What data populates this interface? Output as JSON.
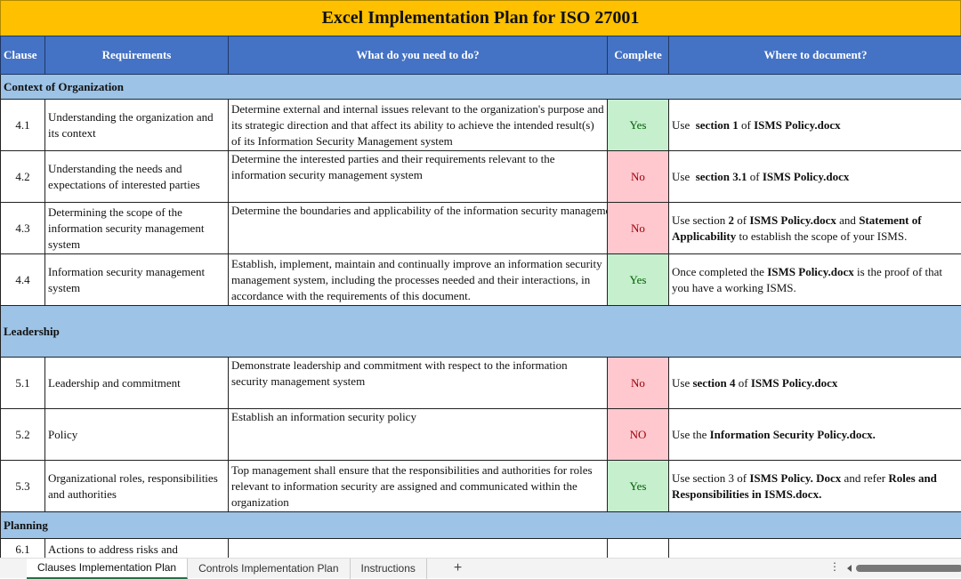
{
  "title": "Excel Implementation Plan for ISO 27001",
  "headers": [
    "Clause",
    "Requirements",
    "What do you need to do?",
    "Complete",
    "Where to document?"
  ],
  "sections": [
    {
      "name": "Context of Organization",
      "rows": [
        {
          "clause": "4.1",
          "req": "Understanding the organization and its context",
          "todo": "Determine external and internal issues relevant to the organization's purpose and its strategic direction and that affect its ability to achieve the intended result(s) of its Information Security Management system",
          "complete": "Yes",
          "doc": [
            {
              "t": "Use  "
            },
            {
              "t": "section 1",
              "b": true
            },
            {
              "t": " of "
            },
            {
              "t": "ISMS Policy.docx",
              "b": true
            }
          ]
        },
        {
          "clause": "4.2",
          "req": "Understanding the needs and expectations of interested parties",
          "todo": "Determine the interested parties and their requirements relevant to the information security management system",
          "complete": "No",
          "doc": [
            {
              "t": "Use  "
            },
            {
              "t": "section 3.1",
              "b": true
            },
            {
              "t": " of "
            },
            {
              "t": "ISMS Policy.docx",
              "b": true
            }
          ]
        },
        {
          "clause": "4.3",
          "req": "Determining the scope of the information security management system",
          "todo": "Determine the boundaries and applicability of the information security management system",
          "complete": "No",
          "doc": [
            {
              "t": "Use section "
            },
            {
              "t": "2",
              "b": true
            },
            {
              "t": " of "
            },
            {
              "t": "ISMS Policy.docx",
              "b": true
            },
            {
              "t": " and "
            },
            {
              "t": "Statement of Applicability",
              "b": true
            },
            {
              "t": " to establish the scope of your ISMS."
            }
          ]
        },
        {
          "clause": "4.4",
          "req": "Information security management system",
          "todo": "Establish, implement, maintain and continually improve an information security management system, including the processes needed and their interactions, in accordance with the requirements of this document.",
          "complete": "Yes",
          "doc": [
            {
              "t": "Once completed the "
            },
            {
              "t": "ISMS Policy.docx",
              "b": true
            },
            {
              "t": " is the proof of that you have a working ISMS."
            }
          ]
        }
      ]
    },
    {
      "name": "Leadership",
      "rows": [
        {
          "clause": "5.1",
          "req": "Leadership and commitment",
          "todo": "Demonstrate leadership and commitment with respect to the information security management system",
          "complete": "No",
          "doc": [
            {
              "t": "Use "
            },
            {
              "t": "section 4",
              "b": true
            },
            {
              "t": " of "
            },
            {
              "t": "ISMS Policy.docx",
              "b": true
            }
          ]
        },
        {
          "clause": "5.2",
          "req": "Policy",
          "todo": "Establish an information security policy",
          "complete": "NO",
          "doc": [
            {
              "t": "Use the "
            },
            {
              "t": "Information Security Policy.docx.",
              "b": true
            }
          ]
        },
        {
          "clause": "5.3",
          "req": "Organizational roles, responsibilities and authorities",
          "todo": "Top management shall ensure that the responsibilities and authorities for roles relevant to information security are assigned and communicated within the organization",
          "complete": "Yes",
          "doc": [
            {
              "t": "Use section 3 of "
            },
            {
              "t": "ISMS Policy. Docx",
              "b": true
            },
            {
              "t": " and refer "
            },
            {
              "t": "Roles and Responsibilities in ISMS.docx.",
              "b": true
            }
          ]
        }
      ]
    },
    {
      "name": "Planning",
      "rows": [
        {
          "clause": "6.1",
          "req": "Actions to address risks and",
          "todo": "",
          "complete": "",
          "doc": []
        }
      ]
    }
  ],
  "tabs": [
    "Clauses Implementation Plan",
    "Controls Implementation Plan",
    "Instructions"
  ],
  "add_sheet": "+",
  "colors": {
    "title_bg": "#ffc000",
    "header_bg": "#4472c4",
    "section_bg": "#9dc3e6",
    "yes_bg": "#c6efce",
    "no_bg": "#ffc7ce"
  }
}
